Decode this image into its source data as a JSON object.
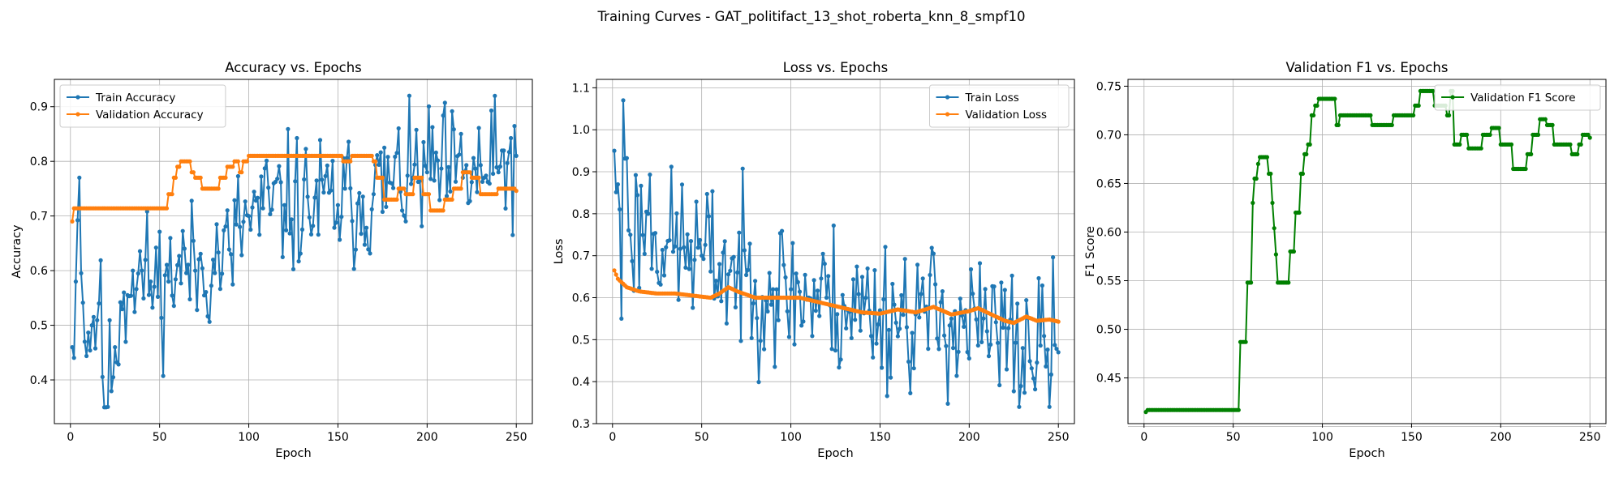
{
  "figure_title": "Training Curves - GAT_politifact_13_shot_roberta_knn_8_smpf10",
  "chart_data": [
    {
      "type": "line",
      "title": "Accuracy vs. Epochs",
      "xlabel": "Epoch",
      "ylabel": "Accuracy",
      "xlim": [
        -9,
        259
      ],
      "ylim": [
        0.32,
        0.95
      ],
      "xticks": [
        0,
        50,
        100,
        150,
        200,
        250
      ],
      "yticks": [
        0.4,
        0.5,
        0.6,
        0.7,
        0.8,
        0.9
      ],
      "ytick_decimals": 1,
      "grid": true,
      "legend": "upper left",
      "series": [
        {
          "name": "Train Accuracy",
          "color": "#1f77b4",
          "style": "noisy",
          "keypoints": [
            [
              1,
              0.46
            ],
            [
              3,
              0.58
            ],
            [
              5,
              0.77
            ],
            [
              8,
              0.47
            ],
            [
              12,
              0.5
            ],
            [
              16,
              0.54
            ],
            [
              20,
              0.35
            ],
            [
              25,
              0.46
            ],
            [
              30,
              0.56
            ],
            [
              35,
              0.6
            ],
            [
              45,
              0.58
            ],
            [
              55,
              0.58
            ],
            [
              60,
              0.61
            ],
            [
              70,
              0.6
            ],
            [
              80,
              0.62
            ],
            [
              90,
              0.63
            ],
            [
              95,
              0.68
            ],
            [
              100,
              0.7
            ],
            [
              120,
              0.72
            ],
            [
              150,
              0.72
            ],
            [
              170,
              0.74
            ],
            [
              180,
              0.76
            ],
            [
              200,
              0.78
            ],
            [
              220,
              0.77
            ],
            [
              240,
              0.78
            ],
            [
              250,
              0.81
            ]
          ],
          "noise": 0.09,
          "min": 0.35,
          "max": 0.92,
          "seed": 11
        },
        {
          "name": "Validation Accuracy",
          "color": "#ff7f0e",
          "style": "steps",
          "keypoints": [
            [
              1,
              0.69
            ],
            [
              2,
              0.714
            ],
            [
              52,
              0.714
            ],
            [
              55,
              0.74
            ],
            [
              58,
              0.77
            ],
            [
              60,
              0.79
            ],
            [
              62,
              0.8
            ],
            [
              66,
              0.8
            ],
            [
              68,
              0.78
            ],
            [
              70,
              0.77
            ],
            [
              74,
              0.75
            ],
            [
              82,
              0.75
            ],
            [
              84,
              0.77
            ],
            [
              88,
              0.79
            ],
            [
              92,
              0.8
            ],
            [
              95,
              0.78
            ],
            [
              97,
              0.8
            ],
            [
              100,
              0.81
            ],
            [
              110,
              0.81
            ],
            [
              150,
              0.81
            ],
            [
              153,
              0.8
            ],
            [
              158,
              0.81
            ],
            [
              166,
              0.81
            ],
            [
              170,
              0.8
            ],
            [
              172,
              0.77
            ],
            [
              176,
              0.73
            ],
            [
              184,
              0.75
            ],
            [
              188,
              0.74
            ],
            [
              193,
              0.77
            ],
            [
              198,
              0.74
            ],
            [
              202,
              0.71
            ],
            [
              206,
              0.71
            ],
            [
              210,
              0.73
            ],
            [
              215,
              0.75
            ],
            [
              220,
              0.78
            ],
            [
              225,
              0.77
            ],
            [
              230,
              0.74
            ],
            [
              235,
              0.74
            ],
            [
              240,
              0.75
            ],
            [
              250,
              0.746
            ]
          ]
        }
      ]
    },
    {
      "type": "line",
      "title": "Loss vs. Epochs",
      "xlabel": "Epoch",
      "ylabel": "Loss",
      "xlim": [
        -9,
        259
      ],
      "ylim": [
        0.3,
        1.12
      ],
      "xticks": [
        0,
        50,
        100,
        150,
        200,
        250
      ],
      "yticks": [
        0.3,
        0.4,
        0.5,
        0.6,
        0.7,
        0.8,
        0.9,
        1.0,
        1.1
      ],
      "ytick_decimals": 1,
      "grid": true,
      "legend": "upper right",
      "series": [
        {
          "name": "Train Loss",
          "color": "#1f77b4",
          "style": "noisy",
          "keypoints": [
            [
              1,
              0.95
            ],
            [
              3,
              0.87
            ],
            [
              5,
              0.55
            ],
            [
              6,
              1.07
            ],
            [
              10,
              0.75
            ],
            [
              20,
              0.8
            ],
            [
              30,
              0.72
            ],
            [
              40,
              0.72
            ],
            [
              50,
              0.7
            ],
            [
              60,
              0.68
            ],
            [
              70,
              0.66
            ],
            [
              80,
              0.64
            ],
            [
              90,
              0.62
            ],
            [
              100,
              0.62
            ],
            [
              110,
              0.6
            ],
            [
              120,
              0.6
            ],
            [
              130,
              0.58
            ],
            [
              150,
              0.57
            ],
            [
              170,
              0.56
            ],
            [
              190,
              0.55
            ],
            [
              210,
              0.52
            ],
            [
              230,
              0.48
            ],
            [
              250,
              0.47
            ]
          ],
          "noise": 0.13,
          "min": 0.34,
          "max": 1.09,
          "seed": 23
        },
        {
          "name": "Validation Loss",
          "color": "#ff7f0e",
          "style": "smooth",
          "keypoints": [
            [
              1,
              0.665
            ],
            [
              3,
              0.645
            ],
            [
              8,
              0.625
            ],
            [
              15,
              0.615
            ],
            [
              25,
              0.61
            ],
            [
              35,
              0.61
            ],
            [
              45,
              0.605
            ],
            [
              55,
              0.6
            ],
            [
              60,
              0.61
            ],
            [
              65,
              0.625
            ],
            [
              70,
              0.615
            ],
            [
              80,
              0.6
            ],
            [
              95,
              0.6
            ],
            [
              105,
              0.6
            ],
            [
              115,
              0.59
            ],
            [
              130,
              0.575
            ],
            [
              140,
              0.565
            ],
            [
              150,
              0.562
            ],
            [
              160,
              0.572
            ],
            [
              170,
              0.565
            ],
            [
              180,
              0.578
            ],
            [
              190,
              0.56
            ],
            [
              200,
              0.568
            ],
            [
              205,
              0.575
            ],
            [
              210,
              0.565
            ],
            [
              220,
              0.545
            ],
            [
              225,
              0.54
            ],
            [
              232,
              0.555
            ],
            [
              238,
              0.545
            ],
            [
              245,
              0.548
            ],
            [
              250,
              0.543
            ]
          ]
        }
      ]
    },
    {
      "type": "line",
      "title": "Validation F1 vs. Epochs",
      "xlabel": "Epoch",
      "ylabel": "F1 Score",
      "xlim": [
        -9,
        259
      ],
      "ylim": [
        0.403,
        0.757
      ],
      "xticks": [
        0,
        50,
        100,
        150,
        200,
        250
      ],
      "yticks": [
        0.4,
        0.45,
        0.5,
        0.55,
        0.6,
        0.65,
        0.7,
        0.75
      ],
      "ytick_decimals": 2,
      "grid": true,
      "legend": "upper right",
      "series": [
        {
          "name": "Validation F1 Score",
          "color": "#008000",
          "style": "steps",
          "keypoints": [
            [
              1,
              0.415
            ],
            [
              2,
              0.417
            ],
            [
              53,
              0.417
            ],
            [
              54,
              0.487
            ],
            [
              57,
              0.487
            ],
            [
              58,
              0.548
            ],
            [
              60,
              0.548
            ],
            [
              61,
              0.63
            ],
            [
              62,
              0.655
            ],
            [
              64,
              0.67
            ],
            [
              65,
              0.677
            ],
            [
              69,
              0.677
            ],
            [
              70,
              0.66
            ],
            [
              72,
              0.63
            ],
            [
              73,
              0.604
            ],
            [
              74,
              0.577
            ],
            [
              75,
              0.548
            ],
            [
              80,
              0.548
            ],
            [
              82,
              0.58
            ],
            [
              85,
              0.62
            ],
            [
              88,
              0.66
            ],
            [
              90,
              0.68
            ],
            [
              92,
              0.69
            ],
            [
              94,
              0.72
            ],
            [
              96,
              0.73
            ],
            [
              98,
              0.737
            ],
            [
              107,
              0.737
            ],
            [
              108,
              0.71
            ],
            [
              110,
              0.72
            ],
            [
              125,
              0.72
            ],
            [
              128,
              0.71
            ],
            [
              135,
              0.71
            ],
            [
              140,
              0.72
            ],
            [
              150,
              0.72
            ],
            [
              152,
              0.73
            ],
            [
              155,
              0.745
            ],
            [
              162,
              0.745
            ],
            [
              163,
              0.73
            ],
            [
              168,
              0.73
            ],
            [
              170,
              0.72
            ],
            [
              172,
              0.745
            ],
            [
              174,
              0.69
            ],
            [
              178,
              0.7
            ],
            [
              182,
              0.686
            ],
            [
              188,
              0.686
            ],
            [
              190,
              0.7
            ],
            [
              195,
              0.707
            ],
            [
              200,
              0.69
            ],
            [
              205,
              0.69
            ],
            [
              207,
              0.665
            ],
            [
              212,
              0.665
            ],
            [
              215,
              0.68
            ],
            [
              218,
              0.7
            ],
            [
              222,
              0.716
            ],
            [
              226,
              0.71
            ],
            [
              230,
              0.69
            ],
            [
              236,
              0.69
            ],
            [
              240,
              0.68
            ],
            [
              244,
              0.69
            ],
            [
              246,
              0.7
            ],
            [
              250,
              0.697
            ]
          ]
        }
      ]
    }
  ]
}
